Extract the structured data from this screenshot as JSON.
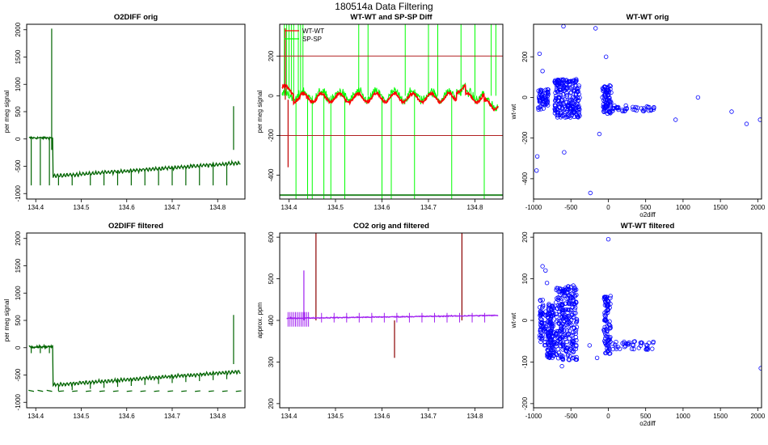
{
  "figure": {
    "title": "180514a   Data Filtering"
  },
  "colors": {
    "darkgreen": "#006400",
    "red": "#ff0000",
    "green": "#00ff00",
    "darkred": "#8b0000",
    "purple": "#a020f0",
    "blue": "#0000ff",
    "axis": "#000000"
  },
  "chart_data": [
    {
      "id": "o2diff-orig",
      "type": "line",
      "title": "O2DIFF orig",
      "xlabel": "",
      "ylabel": "per meg signal",
      "xlim": [
        134.38,
        134.86
      ],
      "ylim": [
        -1100,
        2100
      ],
      "xticks": [
        "134.4",
        "134.5",
        "134.6",
        "134.7",
        "134.8"
      ],
      "xtick_values": [
        134.4,
        134.5,
        134.6,
        134.7,
        134.8
      ],
      "yticks": [
        "-1000",
        "-500",
        "0",
        "500",
        "1000",
        "1500",
        "2000"
      ],
      "ytick_values": [
        -1000,
        -500,
        0,
        500,
        1000,
        1500,
        2000
      ],
      "series": [
        {
          "name": "O2DIFF",
          "color": "#006400",
          "baseline_start": 50,
          "baseline_end": -450,
          "spikes": [
            [
              134.435,
              2020
            ],
            [
              134.835,
              600
            ]
          ],
          "dips": [
            134.39,
            134.41,
            134.43,
            134.45,
            134.48,
            134.52,
            134.55,
            134.58,
            134.61,
            134.64,
            134.67,
            134.7,
            134.73,
            134.76,
            134.79,
            134.82
          ],
          "dip_value": -850
        }
      ]
    },
    {
      "id": "wtwt-spsp-diff",
      "type": "line",
      "title": "WT-WT and SP-SP Diff",
      "xlabel": "",
      "ylabel": "per meg signal",
      "xlim": [
        134.38,
        134.86
      ],
      "ylim": [
        -520,
        360
      ],
      "xticks": [
        "134.4",
        "134.5",
        "134.6",
        "134.7",
        "134.8"
      ],
      "xtick_values": [
        134.4,
        134.5,
        134.6,
        134.7,
        134.8
      ],
      "yticks": [
        "-400",
        "-200",
        "0",
        "200"
      ],
      "ytick_values": [
        -400,
        -200,
        0,
        200
      ],
      "hlines": [
        200,
        -200,
        -500
      ],
      "legend": {
        "position": "top-left",
        "entries": [
          "WT-WT",
          "SP-SP"
        ]
      },
      "series": [
        {
          "name": "WT-WT",
          "color": "#ff0000"
        },
        {
          "name": "SP-SP",
          "color": "#00ff00"
        }
      ]
    },
    {
      "id": "wtwt-orig",
      "type": "scatter",
      "title": "WT-WT orig",
      "xlabel": "o2diff",
      "ylabel": "wt-wt",
      "xlim": [
        -1000,
        2050
      ],
      "ylim": [
        -500,
        360
      ],
      "xticks": [
        "-1000",
        "-500",
        "0",
        "500",
        "1000",
        "1500",
        "2000"
      ],
      "xtick_values": [
        -1000,
        -500,
        0,
        500,
        1000,
        1500,
        2000
      ],
      "yticks": [
        "-400",
        "-200",
        "0",
        "200"
      ],
      "ytick_values": [
        -400,
        -200,
        0,
        200
      ],
      "clusters": [
        {
          "x": [
            -950,
            -800
          ],
          "y": [
            -60,
            40
          ],
          "n": 60
        },
        {
          "x": [
            -720,
            -380
          ],
          "y": [
            -100,
            90
          ],
          "n": 220
        },
        {
          "x": [
            -80,
            40
          ],
          "y": [
            -80,
            60
          ],
          "n": 80
        },
        {
          "x": [
            40,
            620
          ],
          "y": [
            -70,
            -40
          ],
          "n": 40
        }
      ],
      "outliers": [
        [
          -920,
          215
        ],
        [
          -880,
          130
        ],
        [
          -600,
          350
        ],
        [
          -170,
          340
        ],
        [
          -30,
          200
        ],
        [
          -950,
          -290
        ],
        [
          -960,
          -360
        ],
        [
          -590,
          -270
        ],
        [
          -240,
          -470
        ],
        [
          -120,
          -180
        ],
        [
          900,
          -110
        ],
        [
          1200,
          0
        ],
        [
          1650,
          -70
        ],
        [
          1850,
          -130
        ],
        [
          2030,
          -110
        ]
      ]
    },
    {
      "id": "o2diff-filtered",
      "type": "line",
      "title": "O2DIFF filtered",
      "xlabel": "",
      "ylabel": "per meg signal",
      "xlim": [
        134.38,
        134.86
      ],
      "ylim": [
        -1100,
        2100
      ],
      "xticks": [
        "134.4",
        "134.5",
        "134.6",
        "134.7",
        "134.8"
      ],
      "xtick_values": [
        134.4,
        134.5,
        134.6,
        134.7,
        134.8
      ],
      "yticks": [
        "-1000",
        "-500",
        "0",
        "500",
        "1000",
        "1500",
        "2000"
      ],
      "ytick_values": [
        -1000,
        -500,
        0,
        500,
        1000,
        1500,
        2000
      ],
      "series": [
        {
          "name": "O2DIFF",
          "color": "#006400",
          "baseline_start": 50,
          "baseline_end": -450
        }
      ]
    },
    {
      "id": "co2-orig-filtered",
      "type": "line",
      "title": "CO2 orig and filtered",
      "xlabel": "",
      "ylabel": "approx. ppm",
      "xlim": [
        134.38,
        134.86
      ],
      "ylim": [
        190,
        610
      ],
      "xticks": [
        "134.4",
        "134.5",
        "134.6",
        "134.7",
        "134.8"
      ],
      "xtick_values": [
        134.4,
        134.5,
        134.6,
        134.7,
        134.8
      ],
      "yticks": [
        "200",
        "300",
        "400",
        "500",
        "600"
      ],
      "ytick_values": [
        200,
        300,
        400,
        500,
        600
      ],
      "series": [
        {
          "name": "CO2 orig",
          "color": "#8b0000",
          "spikes": [
            [
              134.458,
              610
            ],
            [
              134.772,
              610
            ],
            [
              134.432,
              520
            ]
          ],
          "dips": [
            [
              134.627,
              310
            ]
          ]
        },
        {
          "name": "CO2 filtered",
          "color": "#a020f0",
          "baseline_start": 405,
          "baseline_end": 412
        }
      ]
    },
    {
      "id": "wtwt-filtered",
      "type": "scatter",
      "title": "WT-WT filtered",
      "xlabel": "o2diff",
      "ylabel": "wt-wt",
      "xlim": [
        -1000,
        2050
      ],
      "ylim": [
        -210,
        210
      ],
      "xticks": [
        "-1000",
        "-500",
        "0",
        "500",
        "1000",
        "1500",
        "2000"
      ],
      "xtick_values": [
        -1000,
        -500,
        0,
        500,
        1000,
        1500,
        2000
      ],
      "yticks": [
        "-200",
        "-100",
        "0",
        "100",
        "200"
      ],
      "ytick_values": [
        -200,
        -100,
        0,
        100,
        200
      ],
      "clusters": [
        {
          "x": [
            -920,
            -830
          ],
          "y": [
            -60,
            50
          ],
          "n": 60
        },
        {
          "x": [
            -820,
            -720
          ],
          "y": [
            -90,
            40
          ],
          "n": 120
        },
        {
          "x": [
            -700,
            -420
          ],
          "y": [
            -95,
            85
          ],
          "n": 260
        },
        {
          "x": [
            -60,
            30
          ],
          "y": [
            -80,
            60
          ],
          "n": 90
        },
        {
          "x": [
            30,
            620
          ],
          "y": [
            -70,
            -50
          ],
          "n": 40
        }
      ],
      "outliers": [
        [
          -880,
          130
        ],
        [
          -840,
          120
        ],
        [
          -820,
          90
        ],
        [
          -620,
          -110
        ],
        [
          -150,
          -90
        ],
        [
          0,
          195
        ],
        [
          2040,
          -115
        ],
        [
          -700,
          -80
        ],
        [
          -250,
          -60
        ]
      ]
    }
  ]
}
